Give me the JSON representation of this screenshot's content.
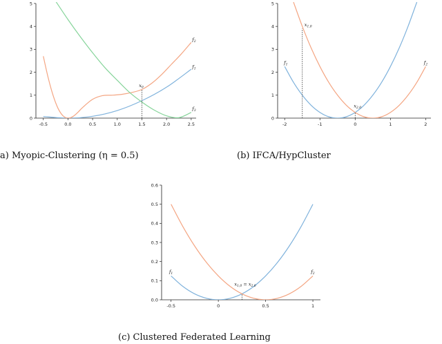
{
  "colors": {
    "blue": "#7fb2dc",
    "orange": "#f4a582",
    "green": "#86d49a",
    "axis": "#222222"
  },
  "captions": {
    "a": "a) Myopic-Clustering (η = 0.5)",
    "b": "(b) IFCA/HypCluster",
    "c": "(c) Clustered Federated Learning"
  },
  "chart_data": [
    {
      "type": "line",
      "panel": "a",
      "xlim": [
        -0.65,
        2.6
      ],
      "ylim": [
        0,
        5
      ],
      "xticks": [
        -0.5,
        0.0,
        0.5,
        1.0,
        1.5,
        2.0,
        2.5
      ],
      "xtick_labels": [
        "-0.5",
        "0.0",
        "0.5",
        "1.0",
        "1.5",
        "2.0",
        "2.5"
      ],
      "yticks": [
        0,
        1,
        2,
        3,
        4,
        5
      ],
      "ytick_labels": [
        "0",
        "1",
        "2",
        "3",
        "4",
        "5"
      ],
      "series": [
        {
          "name": "f1",
          "color": "blue",
          "x": [
            -0.5,
            0.0,
            0.5,
            1.0,
            1.5,
            2.0,
            2.5
          ],
          "y": [
            0.07,
            0.0,
            0.08,
            0.33,
            0.76,
            1.35,
            2.13
          ]
        },
        {
          "name": "f2",
          "color": "orange",
          "x": [
            -0.5,
            -0.4,
            -0.3,
            -0.2,
            -0.1,
            0.0,
            0.1,
            0.2,
            0.3,
            0.5,
            0.7,
            0.9,
            1.1,
            1.3,
            1.5,
            1.7,
            1.9,
            2.1,
            2.3,
            2.5
          ],
          "y": [
            2.7,
            1.75,
            0.98,
            0.42,
            0.1,
            0.0,
            0.07,
            0.25,
            0.47,
            0.82,
            0.98,
            1.0,
            1.04,
            1.12,
            1.25,
            1.52,
            1.9,
            2.35,
            2.8,
            3.3
          ]
        },
        {
          "name": "f3",
          "color": "green",
          "x": [
            -0.25,
            0.0,
            0.25,
            0.5,
            0.75,
            1.0,
            1.25,
            1.5,
            1.75,
            2.0,
            2.25,
            2.5
          ],
          "y": [
            5.1,
            4.3,
            3.55,
            2.85,
            2.2,
            1.65,
            1.12,
            0.7,
            0.35,
            0.1,
            0.02,
            0.25
          ]
        }
      ],
      "labels": [
        {
          "text": "f",
          "sub": "1",
          "x": 2.52,
          "y": 2.17
        },
        {
          "text": "f",
          "sub": "2",
          "x": 2.52,
          "y": 3.36
        },
        {
          "text": "f",
          "sub": "3",
          "x": 2.52,
          "y": 0.35
        },
        {
          "text": "x",
          "sub": "0",
          "x": 1.44,
          "y": 1.35
        }
      ],
      "vline": {
        "x": 1.5,
        "y0": 0,
        "y1": 1.25
      }
    },
    {
      "type": "line",
      "panel": "b",
      "xlim": [
        -2.2,
        2.15
      ],
      "ylim": [
        0,
        5
      ],
      "xticks": [
        -2,
        -1,
        0,
        1,
        2
      ],
      "xtick_labels": [
        "-2",
        "-1",
        "0",
        "1",
        "2"
      ],
      "yticks": [
        0,
        1,
        2,
        3,
        4,
        5
      ],
      "ytick_labels": [
        "0",
        "1",
        "2",
        "3",
        "4",
        "5"
      ],
      "series": [
        {
          "name": "f1",
          "color": "blue",
          "x": [
            -2.0,
            -1.75,
            -1.5,
            -1.25,
            -1.0,
            -0.75,
            -0.5,
            -0.25,
            0.0,
            0.25,
            0.5,
            0.75,
            1.0,
            1.25,
            1.5,
            1.75
          ],
          "y": [
            2.25,
            1.56,
            1.0,
            0.56,
            0.25,
            0.06,
            0.0,
            0.06,
            0.25,
            0.56,
            1.0,
            1.56,
            2.25,
            3.06,
            4.0,
            5.06
          ]
        },
        {
          "name": "f2",
          "color": "orange",
          "x": [
            -1.75,
            -1.5,
            -1.25,
            -1.0,
            -0.75,
            -0.5,
            -0.25,
            0.0,
            0.25,
            0.5,
            0.75,
            1.0,
            1.25,
            1.5,
            1.75,
            2.0
          ],
          "y": [
            5.06,
            4.0,
            3.06,
            2.25,
            1.56,
            1.0,
            0.56,
            0.25,
            0.06,
            0.0,
            0.06,
            0.25,
            0.56,
            1.0,
            1.56,
            2.25
          ]
        }
      ],
      "labels": [
        {
          "text": "f",
          "sub": "1",
          "x": -2.02,
          "y": 2.35
        },
        {
          "text": "f",
          "sub": "2",
          "x": 1.95,
          "y": 2.35
        },
        {
          "text": "x",
          "sub": "1,0",
          "x": -1.44,
          "y": 4.0
        },
        {
          "text": "x",
          "sub": "2,0",
          "x": -0.04,
          "y": 0.47
        }
      ],
      "vlines": [
        {
          "x": -1.5,
          "y0": 0,
          "y1": 3.9
        },
        {
          "x": 0.0,
          "y0": 0,
          "y1": 0.25
        }
      ]
    },
    {
      "type": "line",
      "panel": "c",
      "xlim": [
        -0.6,
        1.08
      ],
      "ylim": [
        0,
        0.6
      ],
      "xticks": [
        -0.5,
        0,
        0.5,
        1
      ],
      "xtick_labels": [
        "-0.5",
        "0",
        "0.5",
        "1"
      ],
      "yticks": [
        0.0,
        0.1,
        0.2,
        0.3,
        0.4,
        0.5,
        0.6
      ],
      "ytick_labels": [
        "0.0",
        "0.1",
        "0.2",
        "0.3",
        "0.4",
        "0.5",
        "0.6"
      ],
      "series": [
        {
          "name": "f1",
          "color": "blue",
          "x": [
            -0.5,
            -0.375,
            -0.25,
            -0.125,
            0.0,
            0.125,
            0.25,
            0.375,
            0.5,
            0.625,
            0.75,
            0.875,
            1.0
          ],
          "y": [
            0.125,
            0.07,
            0.031,
            0.008,
            0.0,
            0.008,
            0.031,
            0.07,
            0.125,
            0.195,
            0.281,
            0.383,
            0.5
          ]
        },
        {
          "name": "f2",
          "color": "orange",
          "x": [
            -0.5,
            -0.375,
            -0.25,
            -0.125,
            0.0,
            0.125,
            0.25,
            0.375,
            0.5,
            0.625,
            0.75,
            0.875,
            1.0
          ],
          "y": [
            0.5,
            0.383,
            0.281,
            0.195,
            0.125,
            0.07,
            0.031,
            0.008,
            0.0,
            0.008,
            0.031,
            0.07,
            0.125
          ]
        }
      ],
      "labels": [
        {
          "text": "f",
          "sub": "1",
          "x": -0.52,
          "y": 0.14
        },
        {
          "text": "f",
          "sub": "2",
          "x": 0.98,
          "y": 0.14
        },
        {
          "text": "x",
          "sub": "1,0",
          "x": 0.17,
          "y": 0.075,
          "suffix_text": " = x",
          "suffix_sub": "2,0"
        }
      ],
      "vline": {
        "x": 0.25,
        "y0": 0,
        "y1": 0.03
      }
    }
  ]
}
